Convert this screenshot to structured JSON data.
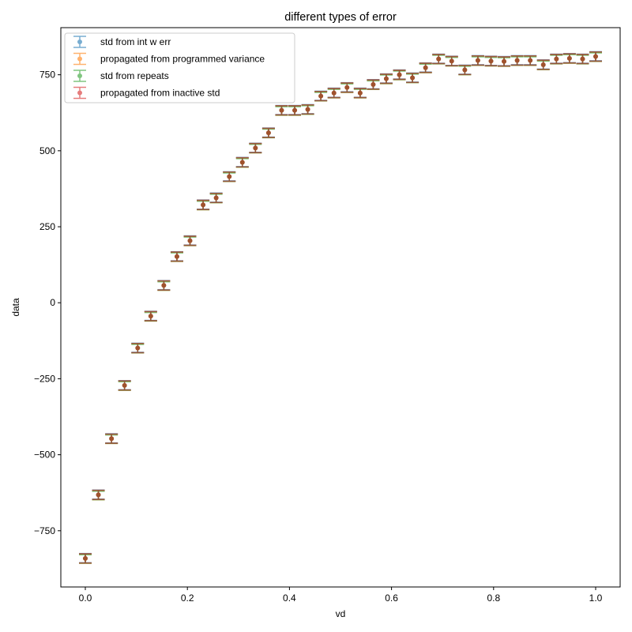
{
  "chart_data": {
    "type": "scatter",
    "subtype": "errorbar",
    "title": "different types of error",
    "xlabel": "vd",
    "ylabel": "data",
    "xlim": [
      -0.048,
      1.048
    ],
    "ylim": [
      -935,
      905
    ],
    "xticks": [
      0.0,
      0.2,
      0.4,
      0.6,
      0.8,
      1.0
    ],
    "xtick_labels": [
      "0.0",
      "0.2",
      "0.4",
      "0.6",
      "0.8",
      "1.0"
    ],
    "yticks": [
      -750,
      -500,
      -250,
      0,
      250,
      500,
      750
    ],
    "ytick_labels": [
      "−750",
      "−500",
      "−250",
      "0",
      "250",
      "500",
      "750"
    ],
    "grid": false,
    "legend_position": "upper left",
    "x": [
      0.0,
      0.0256,
      0.0513,
      0.0769,
      0.1026,
      0.1282,
      0.1538,
      0.1795,
      0.2051,
      0.2308,
      0.2564,
      0.2821,
      0.3077,
      0.3333,
      0.359,
      0.3846,
      0.4103,
      0.4359,
      0.4615,
      0.4872,
      0.5128,
      0.5385,
      0.5641,
      0.5897,
      0.6154,
      0.641,
      0.6667,
      0.6923,
      0.7179,
      0.7436,
      0.7692,
      0.7949,
      0.8205,
      0.8462,
      0.8718,
      0.8974,
      0.9231,
      0.9487,
      0.9744,
      1.0
    ],
    "y": [
      -841,
      -632,
      -447,
      -272,
      -149,
      -44,
      57,
      152,
      204,
      322,
      345,
      415,
      462,
      509,
      559,
      633,
      633,
      636,
      680,
      690,
      708,
      690,
      718,
      737,
      750,
      740,
      773,
      802,
      795,
      766,
      797,
      795,
      794,
      797,
      797,
      783,
      802,
      804,
      802,
      810
    ],
    "series": [
      {
        "name": "std from int w err",
        "color": "#1f77b4",
        "yerr": 15
      },
      {
        "name": "propagated from programmed variance",
        "color": "#ff7f0e",
        "yerr": 15
      },
      {
        "name": "std from repeats",
        "color": "#2ca02c",
        "yerr": 14
      },
      {
        "name": "propagated from inactive std",
        "color": "#d62728",
        "yerr": 15
      }
    ],
    "marker_color": "#a0522d",
    "errorbar_color": "#8b5a3c"
  }
}
